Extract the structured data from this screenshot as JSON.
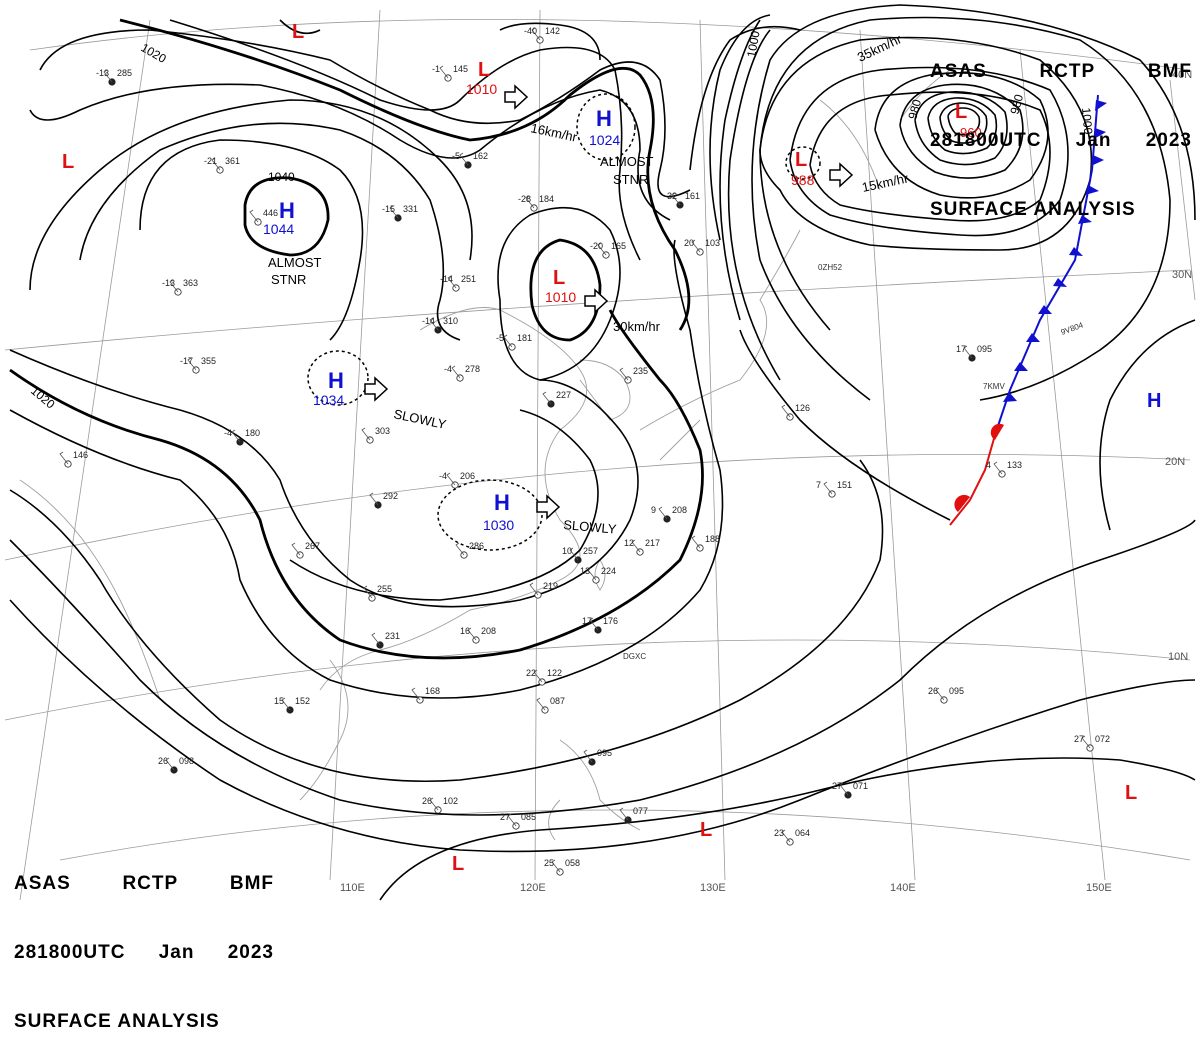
{
  "header_top": {
    "line1": [
      "ASAS",
      "RCTP",
      "BMF"
    ],
    "line2": [
      "281800UTC",
      "Jan",
      "2023"
    ],
    "line3": "SURFACE ANALYSIS"
  },
  "header_bottom": {
    "line1": [
      "ASAS",
      "RCTP",
      "BMF"
    ],
    "line2": [
      "281800UTC",
      "Jan",
      "2023"
    ],
    "line3": "SURFACE ANALYSIS"
  },
  "colors": {
    "high": "#1010d0",
    "low": "#e01010",
    "isobar": "#000000",
    "graticule": "#9a9a9a",
    "coast": "#9a9a9a",
    "cold_front": "#1010d0",
    "warm_front": "#e01010"
  },
  "longitude_labels": [
    "110E",
    "120E",
    "130E",
    "140E",
    "150E"
  ],
  "latitude_labels": [
    "40N",
    "30N",
    "20N",
    "10N"
  ],
  "isobar_labels": [
    "1020",
    "1040",
    "1020",
    "1000",
    "980",
    "980",
    "1000"
  ],
  "pressure_systems": [
    {
      "type": "H",
      "value": "1044",
      "note": "ALMOST STNR"
    },
    {
      "type": "H",
      "value": "1034",
      "note": "SLOWLY"
    },
    {
      "type": "H",
      "value": "1030",
      "note": "SLOWLY"
    },
    {
      "type": "H",
      "value": "1024",
      "note": "ALMOST STNR"
    },
    {
      "type": "L",
      "value": "1010",
      "note": "16km/hr"
    },
    {
      "type": "L",
      "value": "1010",
      "note": "30km/hr"
    },
    {
      "type": "L",
      "value": "988",
      "note": "15km/hr"
    },
    {
      "type": "L",
      "value": "960",
      "note": "35km/hr"
    },
    {
      "type": "H",
      "value": "",
      "note": ""
    },
    {
      "type": "L",
      "value": "",
      "note": ""
    },
    {
      "type": "L",
      "value": "",
      "note": ""
    },
    {
      "type": "L",
      "value": "",
      "note": ""
    },
    {
      "type": "L",
      "value": "",
      "note": ""
    },
    {
      "type": "L",
      "value": "",
      "note": ""
    }
  ],
  "motion_labels": [
    "16km/hr",
    "30km/hr",
    "15km/hr",
    "35km/hr",
    "SLOWLY",
    "SLOWLY"
  ],
  "system_notes": [
    "ALMOST",
    "STNR",
    "ALMOST",
    "STNR"
  ],
  "station_plots": [
    {
      "t": "-13",
      "p": "285"
    },
    {
      "t": "-21",
      "p": "361"
    },
    {
      "t": "",
      "p": "446"
    },
    {
      "t": "-15",
      "p": "331"
    },
    {
      "t": "-13",
      "p": "363"
    },
    {
      "t": "-17",
      "p": "355"
    },
    {
      "t": "-4",
      "p": "180"
    },
    {
      "t": "",
      "p": "146"
    },
    {
      "t": "-14",
      "p": "251"
    },
    {
      "t": "-14",
      "p": "310"
    },
    {
      "t": "-4",
      "p": "278"
    },
    {
      "t": "",
      "p": "303"
    },
    {
      "t": "",
      "p": "292"
    },
    {
      "t": "",
      "p": "267"
    },
    {
      "t": "",
      "p": "255"
    },
    {
      "t": "",
      "p": "231"
    },
    {
      "t": "16",
      "p": "208"
    },
    {
      "t": "",
      "p": "168"
    },
    {
      "t": "15",
      "p": "152"
    },
    {
      "t": "-4",
      "p": "206"
    },
    {
      "t": "",
      "p": "286"
    },
    {
      "t": "10",
      "p": "257"
    },
    {
      "t": "13",
      "p": "224"
    },
    {
      "t": "",
      "p": "219"
    },
    {
      "t": "17",
      "p": "176"
    },
    {
      "t": "22",
      "p": "122"
    },
    {
      "t": "",
      "p": "087"
    },
    {
      "t": "",
      "p": "095"
    },
    {
      "t": "26",
      "p": "102"
    },
    {
      "t": "27",
      "p": "085"
    },
    {
      "t": "",
      "p": "077"
    },
    {
      "t": "25",
      "p": "058"
    },
    {
      "t": "23",
      "p": "064"
    },
    {
      "t": "27",
      "p": "071"
    },
    {
      "t": "26",
      "p": "095"
    },
    {
      "t": "27",
      "p": "072"
    },
    {
      "t": "26",
      "p": "098"
    },
    {
      "t": "-40",
      "p": "142"
    },
    {
      "t": "-1",
      "p": "145"
    },
    {
      "t": "-5",
      "p": "162"
    },
    {
      "t": "-28",
      "p": "184"
    },
    {
      "t": "-20",
      "p": "165"
    },
    {
      "t": "-32",
      "p": "161"
    },
    {
      "t": "20",
      "p": "103"
    },
    {
      "t": "-5",
      "p": "181"
    },
    {
      "t": "",
      "p": "227"
    },
    {
      "t": "",
      "p": "235"
    },
    {
      "t": "",
      "p": "126"
    },
    {
      "t": "17",
      "p": "095"
    },
    {
      "t": "7",
      "p": "151"
    },
    {
      "t": "4",
      "p": "133"
    },
    {
      "t": "9",
      "p": "208"
    },
    {
      "t": "12",
      "p": "217"
    },
    {
      "t": "",
      "p": "188"
    }
  ],
  "ship_ids": [
    "0ZH52",
    "9V804",
    "7KMV",
    "DGXC"
  ],
  "fronts": [
    {
      "type": "cold",
      "label": ""
    },
    {
      "type": "warm",
      "label": ""
    }
  ]
}
